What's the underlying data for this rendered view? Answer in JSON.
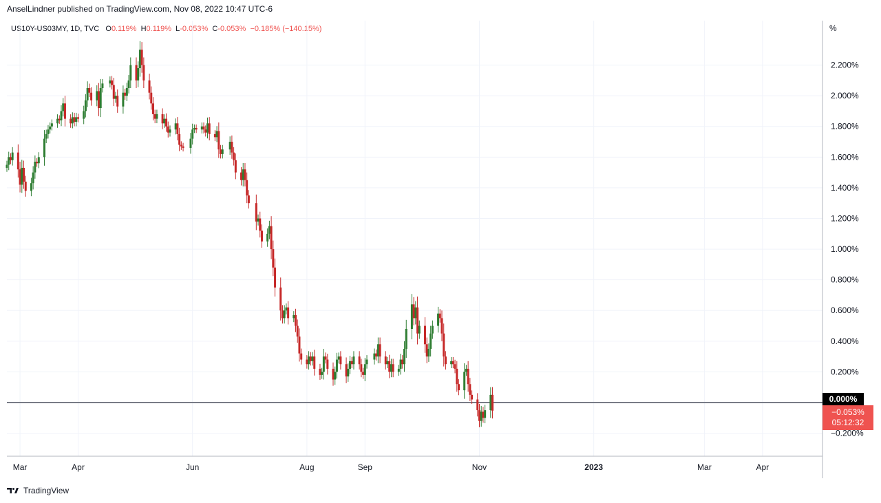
{
  "header": {
    "published": "AnselLindner published on TradingView.com, Nov 08, 2022 10:47 UTC-6"
  },
  "legend": {
    "symbol": "US10Y-US03MY, 1D, TVC",
    "open_label": "O",
    "open": "0.119%",
    "high_label": "H",
    "high": "0.119%",
    "low_label": "L",
    "low": "-0.053%",
    "close_label": "C",
    "close": "-0.053%",
    "change": "−0.185% (−140.15%)"
  },
  "axis": {
    "unit": "%"
  },
  "badges": {
    "zero": "0.000%",
    "last_value": "−0.053%",
    "countdown": "05:12:32"
  },
  "footer": {
    "brand": "TradingView"
  },
  "colors": {
    "up": "#26a69a",
    "up_candle": "#2e7d32",
    "down": "#c62828",
    "grid": "#f0f3fa",
    "zero_line": "#787b86",
    "last": "#ef5350"
  },
  "chart_data": {
    "type": "candlestick",
    "y_ticks": [
      "2.200%",
      "2.000%",
      "1.800%",
      "1.600%",
      "1.400%",
      "1.200%",
      "1.000%",
      "0.800%",
      "0.600%",
      "0.400%",
      "0.200%",
      "−0.200%"
    ],
    "y_tick_values": [
      2.2,
      2.0,
      1.8,
      1.6,
      1.4,
      1.2,
      1.0,
      0.8,
      0.6,
      0.4,
      0.2,
      -0.2
    ],
    "ylim": [
      -0.35,
      2.4
    ],
    "x_ticks": [
      "Mar",
      "Apr",
      "Jun",
      "Aug",
      "Sep",
      "Nov",
      "2023",
      "Mar",
      "Apr"
    ],
    "x_tick_dates": [
      "2022-03-01",
      "2022-04-01",
      "2022-06-01",
      "2022-08-01",
      "2022-09-01",
      "2022-11-01",
      "2023-01-01",
      "2023-03-01",
      "2023-04-01"
    ],
    "bold_x_tick": "2023",
    "horizontal_line": 0.0,
    "last_value": -0.053,
    "series": [
      {
        "d": "2022-02-22",
        "v": 1.55
      },
      {
        "d": "2022-02-23",
        "v": 1.6
      },
      {
        "d": "2022-02-24",
        "v": 1.58
      },
      {
        "d": "2022-02-25",
        "v": 1.63
      },
      {
        "d": "2022-02-28",
        "v": 1.52
      },
      {
        "d": "2022-03-01",
        "v": 1.42
      },
      {
        "d": "2022-03-02",
        "v": 1.53
      },
      {
        "d": "2022-03-03",
        "v": 1.44
      },
      {
        "d": "2022-03-04",
        "v": 1.38
      },
      {
        "d": "2022-03-07",
        "v": 1.43
      },
      {
        "d": "2022-03-08",
        "v": 1.5
      },
      {
        "d": "2022-03-09",
        "v": 1.57
      },
      {
        "d": "2022-03-10",
        "v": 1.56
      },
      {
        "d": "2022-03-11",
        "v": 1.6
      },
      {
        "d": "2022-03-14",
        "v": 1.72
      },
      {
        "d": "2022-03-15",
        "v": 1.75
      },
      {
        "d": "2022-03-16",
        "v": 1.78
      },
      {
        "d": "2022-03-17",
        "v": 1.8
      },
      {
        "d": "2022-03-18",
        "v": 1.82
      },
      {
        "d": "2022-03-21",
        "v": 1.85
      },
      {
        "d": "2022-03-22",
        "v": 1.84
      },
      {
        "d": "2022-03-23",
        "v": 1.9
      },
      {
        "d": "2022-03-24",
        "v": 1.95
      },
      {
        "d": "2022-03-25",
        "v": 1.85
      },
      {
        "d": "2022-03-28",
        "v": 1.82
      },
      {
        "d": "2022-03-29",
        "v": 1.86
      },
      {
        "d": "2022-03-30",
        "v": 1.83
      },
      {
        "d": "2022-03-31",
        "v": 1.86
      },
      {
        "d": "2022-04-01",
        "v": 1.85
      },
      {
        "d": "2022-04-04",
        "v": 1.9
      },
      {
        "d": "2022-04-05",
        "v": 1.97
      },
      {
        "d": "2022-04-06",
        "v": 2.05
      },
      {
        "d": "2022-04-07",
        "v": 2.02
      },
      {
        "d": "2022-04-08",
        "v": 1.97
      },
      {
        "d": "2022-04-11",
        "v": 2.03
      },
      {
        "d": "2022-04-12",
        "v": 1.92
      },
      {
        "d": "2022-04-13",
        "v": 2.05
      },
      {
        "d": "2022-04-14",
        "v": 2.08
      },
      {
        "d": "2022-04-18",
        "v": 2.1
      },
      {
        "d": "2022-04-19",
        "v": 2.07
      },
      {
        "d": "2022-04-20",
        "v": 1.98
      },
      {
        "d": "2022-04-21",
        "v": 2.0
      },
      {
        "d": "2022-04-22",
        "v": 1.93
      },
      {
        "d": "2022-04-25",
        "v": 2.02
      },
      {
        "d": "2022-04-26",
        "v": 2.0
      },
      {
        "d": "2022-04-27",
        "v": 2.05
      },
      {
        "d": "2022-04-28",
        "v": 2.1
      },
      {
        "d": "2022-04-29",
        "v": 2.2
      },
      {
        "d": "2022-05-02",
        "v": 2.1
      },
      {
        "d": "2022-05-03",
        "v": 2.18
      },
      {
        "d": "2022-05-04",
        "v": 2.3
      },
      {
        "d": "2022-05-05",
        "v": 2.2
      },
      {
        "d": "2022-05-06",
        "v": 2.1
      },
      {
        "d": "2022-05-09",
        "v": 2.02
      },
      {
        "d": "2022-05-10",
        "v": 1.95
      },
      {
        "d": "2022-05-11",
        "v": 1.88
      },
      {
        "d": "2022-05-12",
        "v": 1.85
      },
      {
        "d": "2022-05-13",
        "v": 1.88
      },
      {
        "d": "2022-05-16",
        "v": 1.82
      },
      {
        "d": "2022-05-17",
        "v": 1.85
      },
      {
        "d": "2022-05-18",
        "v": 1.8
      },
      {
        "d": "2022-05-19",
        "v": 1.76
      },
      {
        "d": "2022-05-20",
        "v": 1.78
      },
      {
        "d": "2022-05-23",
        "v": 1.82
      },
      {
        "d": "2022-05-24",
        "v": 1.75
      },
      {
        "d": "2022-05-25",
        "v": 1.68
      },
      {
        "d": "2022-05-26",
        "v": 1.67
      },
      {
        "d": "2022-05-27",
        "v": 1.66
      },
      {
        "d": "2022-05-31",
        "v": 1.72
      },
      {
        "d": "2022-06-01",
        "v": 1.78
      },
      {
        "d": "2022-06-02",
        "v": 1.79
      },
      {
        "d": "2022-06-03",
        "v": 1.78
      },
      {
        "d": "2022-06-06",
        "v": 1.8
      },
      {
        "d": "2022-06-07",
        "v": 1.78
      },
      {
        "d": "2022-06-08",
        "v": 1.76
      },
      {
        "d": "2022-06-09",
        "v": 1.82
      },
      {
        "d": "2022-06-10",
        "v": 1.75
      },
      {
        "d": "2022-06-13",
        "v": 1.73
      },
      {
        "d": "2022-06-14",
        "v": 1.77
      },
      {
        "d": "2022-06-15",
        "v": 1.65
      },
      {
        "d": "2022-06-16",
        "v": 1.62
      },
      {
        "d": "2022-06-17",
        "v": 1.65
      },
      {
        "d": "2022-06-21",
        "v": 1.7
      },
      {
        "d": "2022-06-22",
        "v": 1.63
      },
      {
        "d": "2022-06-23",
        "v": 1.58
      },
      {
        "d": "2022-06-24",
        "v": 1.5
      },
      {
        "d": "2022-06-27",
        "v": 1.45
      },
      {
        "d": "2022-06-28",
        "v": 1.52
      },
      {
        "d": "2022-06-29",
        "v": 1.45
      },
      {
        "d": "2022-06-30",
        "v": 1.35
      },
      {
        "d": "2022-07-01",
        "v": 1.3
      },
      {
        "d": "2022-07-05",
        "v": 1.18
      },
      {
        "d": "2022-07-06",
        "v": 1.2
      },
      {
        "d": "2022-07-07",
        "v": 1.12
      },
      {
        "d": "2022-07-08",
        "v": 1.05
      },
      {
        "d": "2022-07-11",
        "v": 1.1
      },
      {
        "d": "2022-07-12",
        "v": 1.15
      },
      {
        "d": "2022-07-13",
        "v": 1.0
      },
      {
        "d": "2022-07-14",
        "v": 0.88
      },
      {
        "d": "2022-07-15",
        "v": 0.75
      },
      {
        "d": "2022-07-18",
        "v": 0.6
      },
      {
        "d": "2022-07-19",
        "v": 0.55
      },
      {
        "d": "2022-07-20",
        "v": 0.6
      },
      {
        "d": "2022-07-21",
        "v": 0.62
      },
      {
        "d": "2022-07-22",
        "v": 0.55
      },
      {
        "d": "2022-07-25",
        "v": 0.57
      },
      {
        "d": "2022-07-26",
        "v": 0.5
      },
      {
        "d": "2022-07-27",
        "v": 0.43
      },
      {
        "d": "2022-07-28",
        "v": 0.32
      },
      {
        "d": "2022-07-29",
        "v": 0.28
      },
      {
        "d": "2022-08-01",
        "v": 0.25
      },
      {
        "d": "2022-08-02",
        "v": 0.3
      },
      {
        "d": "2022-08-03",
        "v": 0.27
      },
      {
        "d": "2022-08-04",
        "v": 0.3
      },
      {
        "d": "2022-08-05",
        "v": 0.22
      },
      {
        "d": "2022-08-08",
        "v": 0.18
      },
      {
        "d": "2022-08-09",
        "v": 0.2
      },
      {
        "d": "2022-08-10",
        "v": 0.3
      },
      {
        "d": "2022-08-11",
        "v": 0.28
      },
      {
        "d": "2022-08-12",
        "v": 0.22
      },
      {
        "d": "2022-08-15",
        "v": 0.15
      },
      {
        "d": "2022-08-16",
        "v": 0.2
      },
      {
        "d": "2022-08-17",
        "v": 0.28
      },
      {
        "d": "2022-08-18",
        "v": 0.3
      },
      {
        "d": "2022-08-19",
        "v": 0.25
      },
      {
        "d": "2022-08-22",
        "v": 0.17
      },
      {
        "d": "2022-08-23",
        "v": 0.22
      },
      {
        "d": "2022-08-24",
        "v": 0.27
      },
      {
        "d": "2022-08-25",
        "v": 0.25
      },
      {
        "d": "2022-08-26",
        "v": 0.3
      },
      {
        "d": "2022-08-29",
        "v": 0.25
      },
      {
        "d": "2022-08-30",
        "v": 0.2
      },
      {
        "d": "2022-08-31",
        "v": 0.18
      },
      {
        "d": "2022-09-01",
        "v": 0.25
      },
      {
        "d": "2022-09-02",
        "v": 0.28
      },
      {
        "d": "2022-09-06",
        "v": 0.32
      },
      {
        "d": "2022-09-07",
        "v": 0.3
      },
      {
        "d": "2022-09-08",
        "v": 0.38
      },
      {
        "d": "2022-09-09",
        "v": 0.3
      },
      {
        "d": "2022-09-12",
        "v": 0.25
      },
      {
        "d": "2022-09-13",
        "v": 0.27
      },
      {
        "d": "2022-09-14",
        "v": 0.2
      },
      {
        "d": "2022-09-15",
        "v": 0.25
      },
      {
        "d": "2022-09-16",
        "v": 0.2
      },
      {
        "d": "2022-09-19",
        "v": 0.22
      },
      {
        "d": "2022-09-20",
        "v": 0.28
      },
      {
        "d": "2022-09-21",
        "v": 0.25
      },
      {
        "d": "2022-09-22",
        "v": 0.35
      },
      {
        "d": "2022-09-23",
        "v": 0.48
      },
      {
        "d": "2022-09-26",
        "v": 0.64
      },
      {
        "d": "2022-09-27",
        "v": 0.55
      },
      {
        "d": "2022-09-28",
        "v": 0.62
      },
      {
        "d": "2022-09-29",
        "v": 0.45
      },
      {
        "d": "2022-09-30",
        "v": 0.5
      },
      {
        "d": "2022-10-03",
        "v": 0.38
      },
      {
        "d": "2022-10-04",
        "v": 0.3
      },
      {
        "d": "2022-10-05",
        "v": 0.35
      },
      {
        "d": "2022-10-06",
        "v": 0.45
      },
      {
        "d": "2022-10-07",
        "v": 0.5
      },
      {
        "d": "2022-10-10",
        "v": 0.58
      },
      {
        "d": "2022-10-11",
        "v": 0.55
      },
      {
        "d": "2022-10-12",
        "v": 0.45
      },
      {
        "d": "2022-10-13",
        "v": 0.3
      },
      {
        "d": "2022-10-14",
        "v": 0.25
      },
      {
        "d": "2022-10-17",
        "v": 0.27
      },
      {
        "d": "2022-10-18",
        "v": 0.25
      },
      {
        "d": "2022-10-19",
        "v": 0.22
      },
      {
        "d": "2022-10-20",
        "v": 0.12
      },
      {
        "d": "2022-10-21",
        "v": 0.08
      },
      {
        "d": "2022-10-24",
        "v": 0.2
      },
      {
        "d": "2022-10-25",
        "v": 0.22
      },
      {
        "d": "2022-10-26",
        "v": 0.12
      },
      {
        "d": "2022-10-27",
        "v": 0.05
      },
      {
        "d": "2022-10-28",
        "v": 0.02
      },
      {
        "d": "2022-10-31",
        "v": -0.05
      },
      {
        "d": "2022-11-01",
        "v": -0.12
      },
      {
        "d": "2022-11-02",
        "v": -0.06
      },
      {
        "d": "2022-11-03",
        "v": -0.1
      },
      {
        "d": "2022-11-04",
        "v": -0.05
      },
      {
        "d": "2022-11-07",
        "v": 0.05
      },
      {
        "d": "2022-11-08",
        "v": -0.053
      }
    ]
  }
}
